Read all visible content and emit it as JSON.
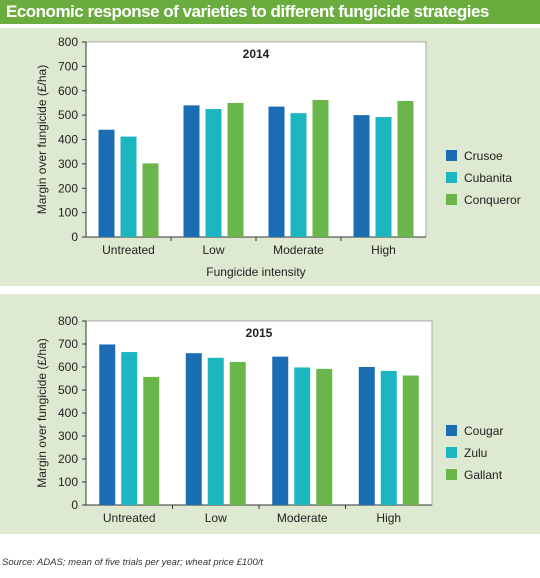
{
  "header": {
    "title": "Economic response of varieties to different fungicide strategies"
  },
  "source_note": "Source: ADAS; mean of five trials per year; wheat price £100/t",
  "colors": {
    "header_bg": "#6aac3e",
    "panel_bg": "#dde9d0",
    "series": [
      "#1a6db3",
      "#1cb6c0",
      "#6bb64a"
    ]
  },
  "chart_data": [
    {
      "type": "bar",
      "title": "2014",
      "categories": [
        "Untreated",
        "Low",
        "Moderate",
        "High"
      ],
      "series": [
        {
          "name": "Crusoe",
          "values": [
            440,
            540,
            535,
            500
          ]
        },
        {
          "name": "Cubanita",
          "values": [
            412,
            525,
            508,
            492
          ]
        },
        {
          "name": "Conqueror",
          "values": [
            302,
            550,
            562,
            558
          ]
        }
      ],
      "xlabel": "Fungicide intensity",
      "ylabel": "Margin over fungicide (£/ha)",
      "ylim": [
        0,
        800
      ],
      "yticks": [
        0,
        100,
        200,
        300,
        400,
        500,
        600,
        700,
        800
      ],
      "grid": false,
      "legend": "right"
    },
    {
      "type": "bar",
      "title": "2015",
      "categories": [
        "Untreated",
        "Low",
        "Moderate",
        "High"
      ],
      "series": [
        {
          "name": "Cougar",
          "values": [
            698,
            660,
            645,
            600
          ]
        },
        {
          "name": "Zulu",
          "values": [
            665,
            640,
            598,
            583
          ]
        },
        {
          "name": "Gallant",
          "values": [
            557,
            622,
            592,
            563
          ]
        }
      ],
      "xlabel": "",
      "ylabel": "Margin over fungicide (£/ha)",
      "ylim": [
        0,
        800
      ],
      "yticks": [
        0,
        100,
        200,
        300,
        400,
        500,
        600,
        700,
        800
      ],
      "grid": false,
      "legend": "right"
    }
  ]
}
